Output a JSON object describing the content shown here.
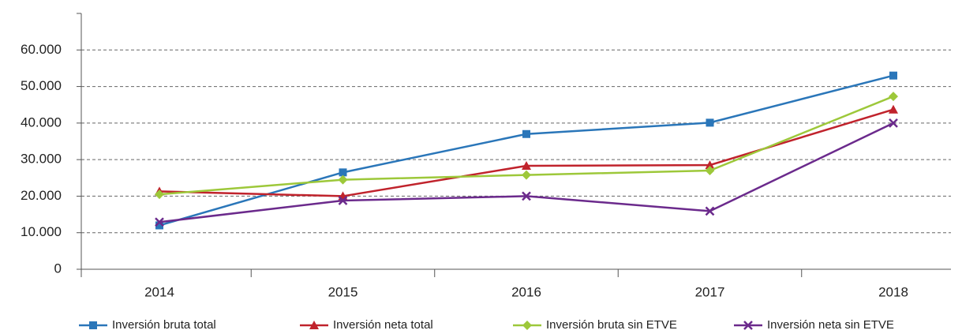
{
  "chart_data": {
    "type": "line",
    "categories": [
      "2014",
      "2015",
      "2016",
      "2017",
      "2018"
    ],
    "series": [
      {
        "name": "Inversión bruta total",
        "color": "#2a76b9",
        "marker": "square",
        "values": [
          12000,
          26500,
          37000,
          40100,
          53000
        ]
      },
      {
        "name": "Inversión neta total",
        "color": "#c0232c",
        "marker": "triangle",
        "values": [
          21300,
          20000,
          28300,
          28500,
          43700
        ]
      },
      {
        "name": "Inversión bruta sin ETVE",
        "color": "#9dc83a",
        "marker": "diamond",
        "values": [
          20500,
          24500,
          25800,
          27000,
          47300
        ]
      },
      {
        "name": "Inversión neta sin ETVE",
        "color": "#6b2a8c",
        "marker": "x",
        "values": [
          12900,
          18800,
          20000,
          15900,
          40000
        ]
      }
    ],
    "ylim": [
      0,
      70000
    ],
    "yticks": [
      0,
      {
        "value": 10000,
        "label": "10.000"
      },
      {
        "value": 20000,
        "label": "20.000"
      },
      {
        "value": 30000,
        "label": "30.000"
      },
      {
        "value": 40000,
        "label": "40.000"
      },
      {
        "value": 50000,
        "label": "50.000"
      },
      {
        "value": 60000,
        "label": "60.000"
      }
    ],
    "grid": true,
    "legend": "bottom"
  }
}
